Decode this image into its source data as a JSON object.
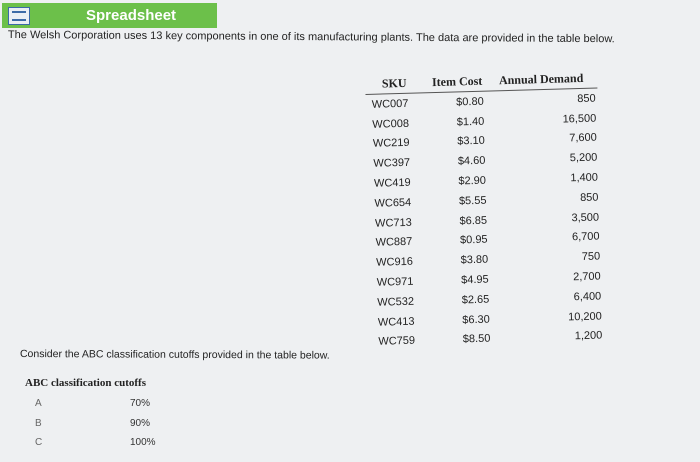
{
  "banner": {
    "title": "Spreadsheet",
    "icon": "spreadsheet-icon"
  },
  "intro": "The Welsh Corporation uses 13 key components in one of its manufacturing plants. The data are provided in the table below.",
  "table": {
    "headers": [
      "SKU",
      "Item Cost",
      "Annual Demand"
    ],
    "rows": [
      [
        "WC007",
        "$0.80",
        "850"
      ],
      [
        "WC008",
        "$1.40",
        "16,500"
      ],
      [
        "WC219",
        "$3.10",
        "7,600"
      ],
      [
        "WC397",
        "$4.60",
        "5,200"
      ],
      [
        "WC419",
        "$2.90",
        "1,400"
      ],
      [
        "WC654",
        "$5.55",
        "850"
      ],
      [
        "WC713",
        "$6.85",
        "3,500"
      ],
      [
        "WC887",
        "$0.95",
        "6,700"
      ],
      [
        "WC916",
        "$3.80",
        "750"
      ],
      [
        "WC971",
        "$4.95",
        "2,700"
      ],
      [
        "WC532",
        "$2.65",
        "6,400"
      ],
      [
        "WC413",
        "$6.30",
        "10,200"
      ],
      [
        "WC759",
        "$8.50",
        "1,200"
      ]
    ]
  },
  "consider": "Consider the ABC classification cutoffs provided in the table below.",
  "abc": {
    "title": "ABC classification cutoffs",
    "rows": [
      [
        "A",
        "70%"
      ],
      [
        "B",
        "90%"
      ],
      [
        "C",
        "100%"
      ]
    ]
  }
}
